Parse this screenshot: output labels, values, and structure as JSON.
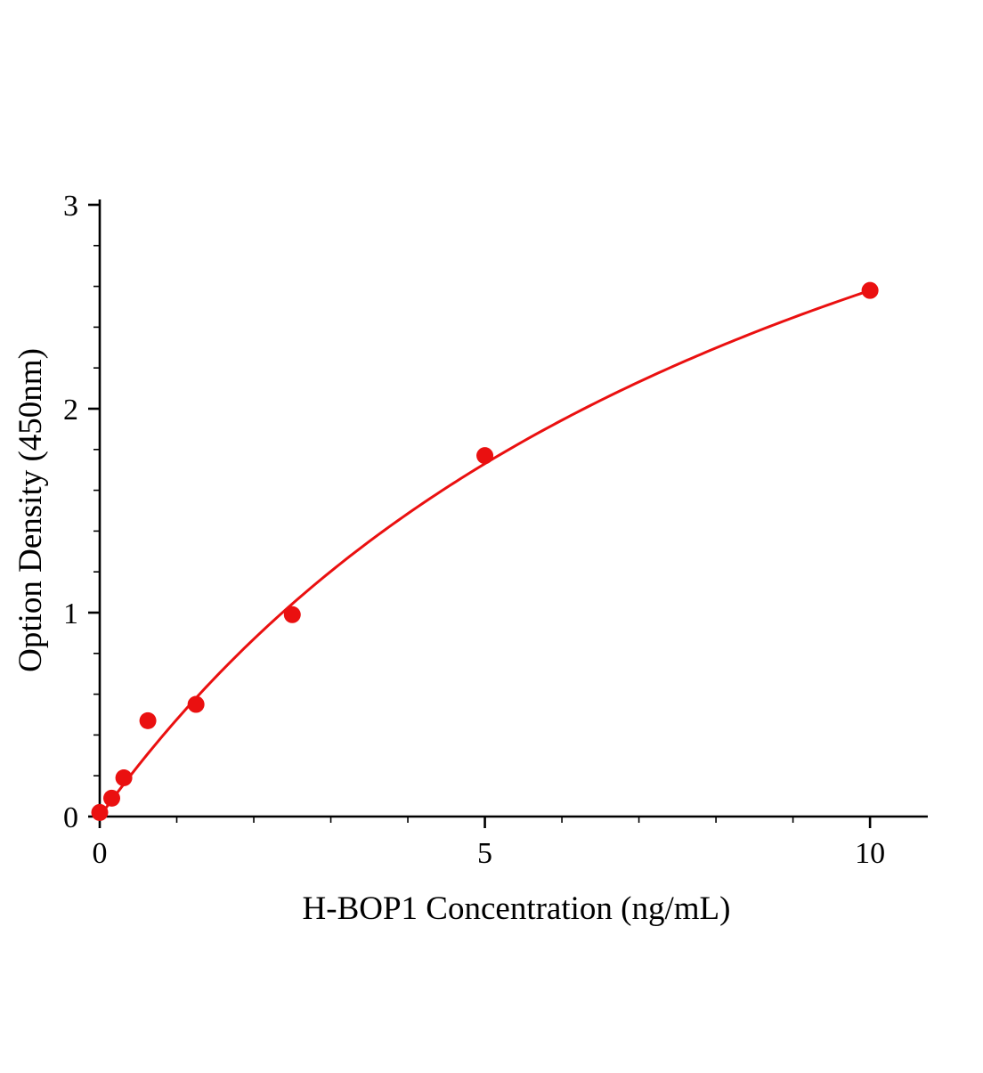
{
  "page": {
    "background": "#ffffff"
  },
  "chart_data": {
    "type": "scatter",
    "title": "",
    "xlabel": "H-BOP1 Concentration (ng/mL)",
    "ylabel": "Option Density (450nm)",
    "x": [
      0,
      0.156,
      0.313,
      0.625,
      1.25,
      2.5,
      5,
      10
    ],
    "y": [
      0.02,
      0.09,
      0.19,
      0.47,
      0.55,
      0.99,
      1.77,
      2.58
    ],
    "xlim": [
      0,
      10.75
    ],
    "ylim": [
      0,
      3
    ],
    "x_major_ticks": [
      0,
      5,
      10
    ],
    "x_minor_step": 1,
    "y_major_ticks": [
      0,
      1,
      2,
      3
    ],
    "y_minor_step": 0.2,
    "fit_curve": {
      "model": "saturation",
      "vmax": 5.07,
      "k": 9.65
    },
    "marker_color": "#ea1010",
    "line_color": "#ea1010",
    "axis_color": "#000000",
    "marker_radius": 9.5,
    "grid": false,
    "legend": null
  }
}
